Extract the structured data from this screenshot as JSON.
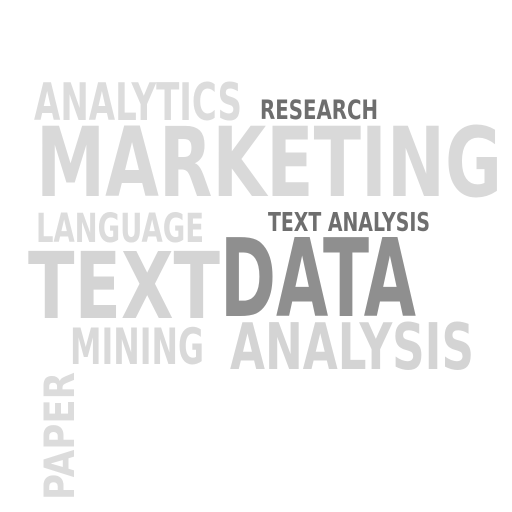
{
  "word_cloud": {
    "words": [
      {
        "id": "analytics",
        "text": "ANALYTICS",
        "color": "#dcdcdc"
      },
      {
        "id": "research",
        "text": "RESEARCH",
        "color": "#6e6e6e"
      },
      {
        "id": "marketing",
        "text": "MARKETING",
        "color": "#d9d9d9"
      },
      {
        "id": "language",
        "text": "LANGUAGE",
        "color": "#dcdcdc"
      },
      {
        "id": "text-analysis",
        "text": "TEXT ANALYSIS",
        "color": "#6e6e6e"
      },
      {
        "id": "text",
        "text": "TEXT",
        "color": "#d4d4d4"
      },
      {
        "id": "data",
        "text": "DATA",
        "color": "#8f8f8f"
      },
      {
        "id": "mining",
        "text": "MINING",
        "color": "#d9d9d9"
      },
      {
        "id": "analysis",
        "text": "ANALYSIS",
        "color": "#d4d4d4"
      },
      {
        "id": "paper",
        "text": "PAPER",
        "color": "#dcdcdc"
      }
    ]
  }
}
